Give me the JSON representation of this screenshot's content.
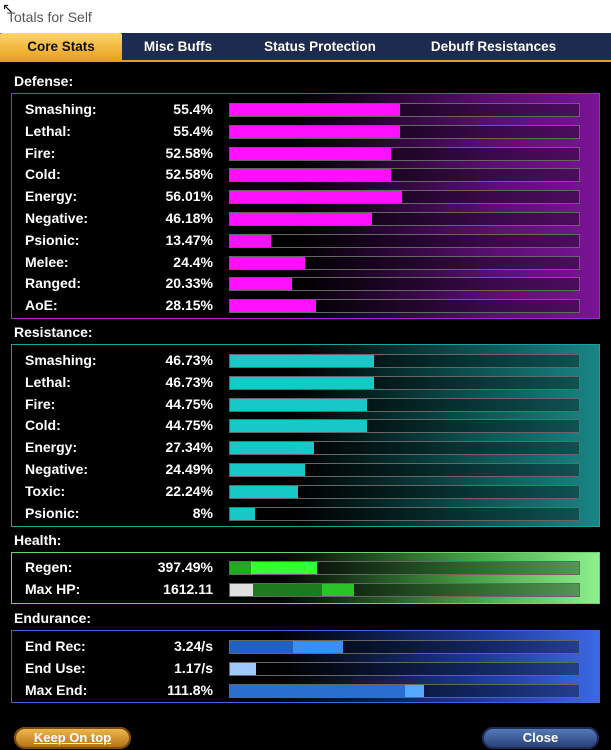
{
  "window": {
    "title": "Totals for Self"
  },
  "tabs": [
    "Core Stats",
    "Misc Buffs",
    "Status Protection",
    "Debuff Resistances"
  ],
  "active_tab": "Core Stats",
  "defense": {
    "title": "Defense:",
    "color": "#ff10ff",
    "rows": [
      {
        "label": "Smashing:",
        "value": "55.4%",
        "level": 0.554
      },
      {
        "label": "Lethal:",
        "value": "55.4%",
        "level": 0.554
      },
      {
        "label": "Fire:",
        "value": "52.58%",
        "level": 0.5258
      },
      {
        "label": "Cold:",
        "value": "52.58%",
        "level": 0.5258
      },
      {
        "label": "Energy:",
        "value": "56.01%",
        "level": 0.5601
      },
      {
        "label": "Negative:",
        "value": "46.18%",
        "level": 0.4618
      },
      {
        "label": "Psionic:",
        "value": "13.47%",
        "level": 0.1347
      },
      {
        "label": "Melee:",
        "value": "24.4%",
        "level": 0.244
      },
      {
        "label": "Ranged:",
        "value": "20.33%",
        "level": 0.2033
      },
      {
        "label": "AoE:",
        "value": "28.15%",
        "level": 0.2815
      }
    ]
  },
  "resistance": {
    "title": "Resistance:",
    "color": "#16c8c8",
    "rows": [
      {
        "label": "Smashing:",
        "value": "46.73%",
        "level": 0.4673
      },
      {
        "label": "Lethal:",
        "value": "46.73%",
        "level": 0.4673
      },
      {
        "label": "Fire:",
        "value": "44.75%",
        "level": 0.4475
      },
      {
        "label": "Cold:",
        "value": "44.75%",
        "level": 0.4475
      },
      {
        "label": "Energy:",
        "value": "27.34%",
        "level": 0.2734
      },
      {
        "label": "Negative:",
        "value": "24.49%",
        "level": 0.2449
      },
      {
        "label": "Toxic:",
        "value": "22.24%",
        "level": 0.2224
      },
      {
        "label": "Psionic:",
        "value": "8%",
        "level": 0.08
      }
    ]
  },
  "health": {
    "title": "Health:",
    "rows": [
      {
        "label": "Regen:",
        "value": "397.49%",
        "segments": [
          {
            "color": "#1faa1f",
            "from": 0.0,
            "to": 0.06
          },
          {
            "color": "#33ff33",
            "from": 0.06,
            "to": 0.25
          }
        ]
      },
      {
        "label": "Max HP:",
        "value": "1612.11",
        "segments": [
          {
            "color": "#e0e0e0",
            "from": 0.0,
            "to": 0.065
          },
          {
            "color": "#1e7a1e",
            "from": 0.065,
            "to": 0.265
          },
          {
            "color": "#28c428",
            "from": 0.265,
            "to": 0.355
          }
        ]
      }
    ]
  },
  "endurance": {
    "title": "Endurance:",
    "rows": [
      {
        "label": "End Rec:",
        "value": "3.24/s",
        "segments": [
          {
            "color": "#2060c0",
            "from": 0.0,
            "to": 0.18
          },
          {
            "color": "#3a8ff0",
            "from": 0.18,
            "to": 0.325
          }
        ]
      },
      {
        "label": "End Use:",
        "value": "1.17/s",
        "segments": [
          {
            "color": "#9fc8ff",
            "from": 0.0,
            "to": 0.075
          }
        ]
      },
      {
        "label": "Max End:",
        "value": "111.8%",
        "segments": [
          {
            "color": "#2a6ed0",
            "from": 0.0,
            "to": 0.5
          },
          {
            "color": "#55aaff",
            "from": 0.5,
            "to": 0.555
          }
        ]
      }
    ]
  },
  "buttons": {
    "keep_on_top": "Keep On top",
    "close": "Close"
  }
}
